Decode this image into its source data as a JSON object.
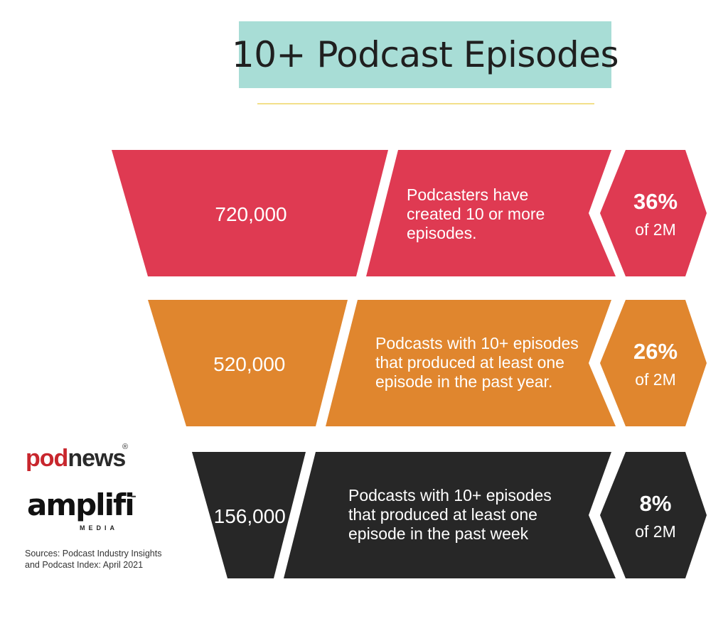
{
  "header": {
    "title": "10+ Podcast Episodes"
  },
  "colors": {
    "title_bg": "#a8ddd6",
    "row1": "#df3a52",
    "row2": "#e0862e",
    "row3": "#272727",
    "text": "#ffffff"
  },
  "chart_data": {
    "type": "bar",
    "title": "10+ Podcast Episodes",
    "categories": [
      "Podcasters have created 10 or more episodes.",
      "Podcasts with 10+ episodes that produced at least one episode in the past year.",
      "Podcasts with 10+ episodes that produced at least one episode in the past week"
    ],
    "values": [
      720000,
      520000,
      156000
    ],
    "rows": [
      {
        "value_label": "720,000",
        "description": [
          "Podcasters have",
          "created 10 or more",
          "episodes."
        ],
        "percent": "36%",
        "of_total": "of 2M"
      },
      {
        "value_label": "520,000",
        "description": [
          "Podcasts with 10+ episodes",
          "that produced at least one",
          "episode in the past year."
        ],
        "percent": "26%",
        "of_total": "of 2M"
      },
      {
        "value_label": "156,000",
        "description": [
          "Podcasts with 10+ episodes",
          "that produced at least one",
          "episode in the past week"
        ],
        "percent": "8%",
        "of_total": "of 2M"
      }
    ]
  },
  "branding": {
    "podnews_pod": "pod",
    "podnews_news": "news",
    "podnews_mark": "®",
    "amplifi": "amplifi",
    "amplifi_dots": "•••",
    "amplifi_sub": "MEDIA"
  },
  "footer": {
    "sources_line1": "Sources: Podcast Industry Insights",
    "sources_line2": "and Podcast Index: April 2021"
  }
}
